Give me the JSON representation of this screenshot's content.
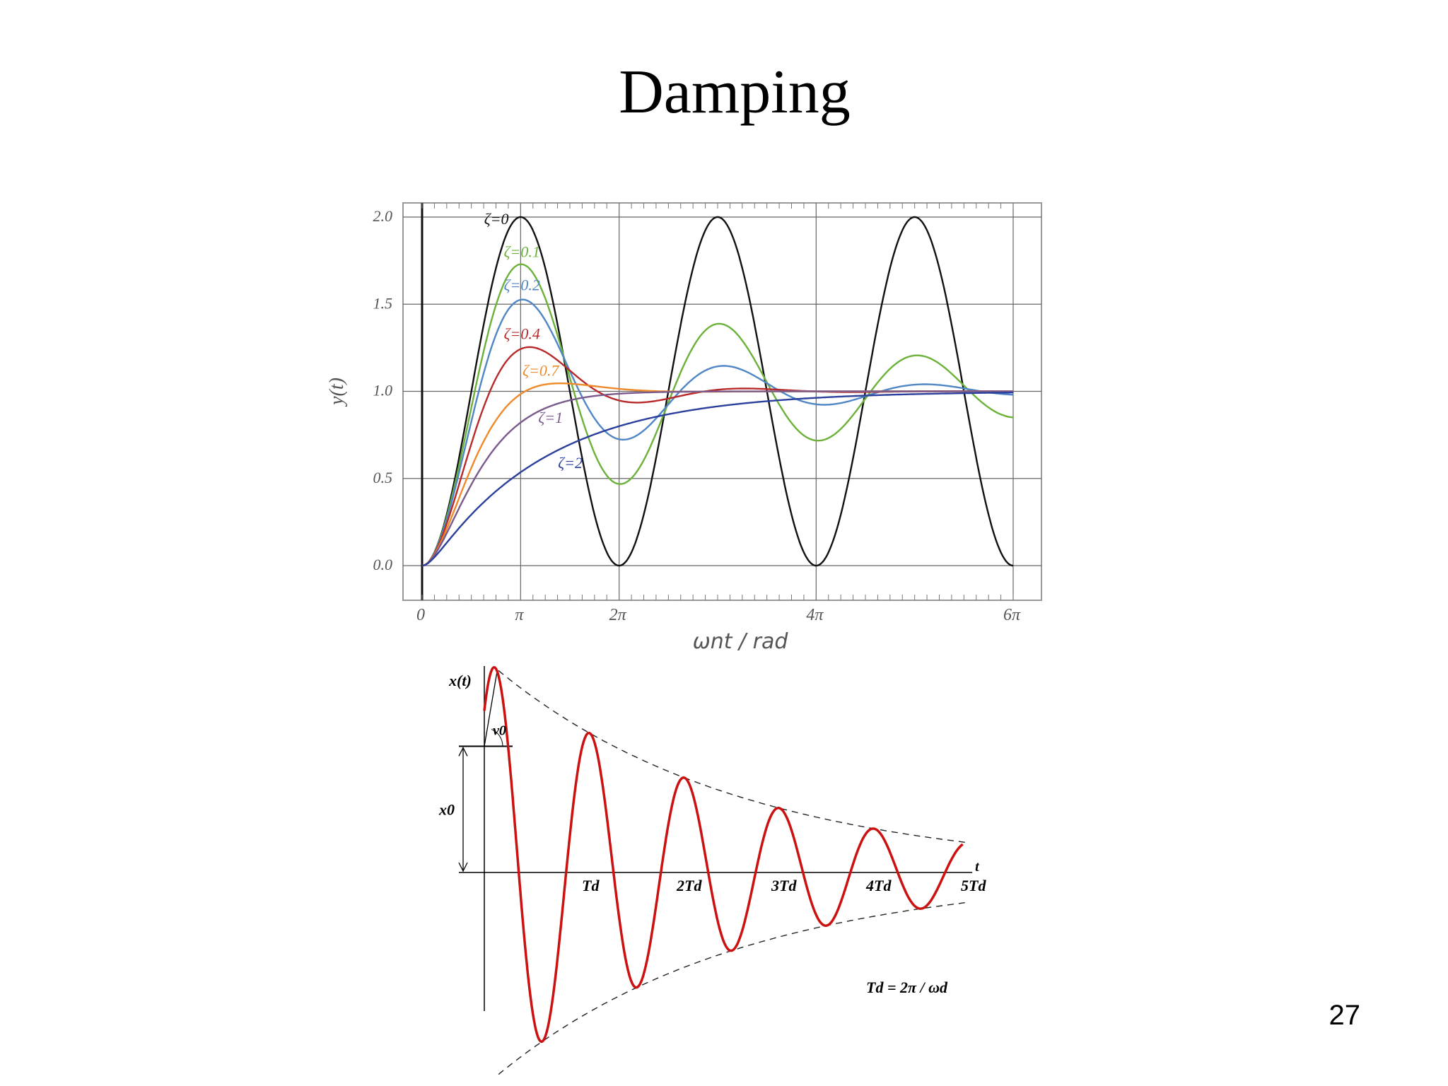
{
  "slide": {
    "title": "Damping",
    "page_number": "27"
  },
  "chart_data": [
    {
      "type": "line",
      "title": "",
      "xlabel": "ωnt / rad",
      "ylabel": "y(t)",
      "xlim": [
        0,
        6
      ],
      "ylim": [
        0,
        2
      ],
      "x_unit": "π rad",
      "xticks": [
        {
          "value": 0,
          "label": "0"
        },
        {
          "value": 1,
          "label": "π"
        },
        {
          "value": 2,
          "label": "2π"
        },
        {
          "value": 4,
          "label": "4π"
        },
        {
          "value": 6,
          "label": "6π"
        }
      ],
      "yticks": [
        {
          "value": 0,
          "label": "0.0"
        },
        {
          "value": 0.5,
          "label": "0.5"
        },
        {
          "value": 1.0,
          "label": "1.0"
        },
        {
          "value": 1.5,
          "label": "1.5"
        },
        {
          "value": 2.0,
          "label": "2.0"
        }
      ],
      "grid": true,
      "series": [
        {
          "name": "ζ=0",
          "zeta": 0,
          "color": "#111111",
          "label_at": [
            0.63,
            1.96
          ]
        },
        {
          "name": "ζ=0.1",
          "zeta": 0.1,
          "color": "#6bb13a",
          "label_at": [
            0.83,
            1.77
          ]
        },
        {
          "name": "ζ=0.2",
          "zeta": 0.2,
          "color": "#4f86c6",
          "label_at": [
            0.83,
            1.58
          ]
        },
        {
          "name": "ζ=0.4",
          "zeta": 0.4,
          "color": "#b82a2a",
          "label_at": [
            0.83,
            1.3
          ]
        },
        {
          "name": "ζ=0.7",
          "zeta": 0.7,
          "color": "#ee8a2a",
          "label_at": [
            1.02,
            1.09
          ]
        },
        {
          "name": "ζ=1",
          "zeta": 1,
          "color": "#7a5a8c",
          "label_at": [
            1.18,
            0.82
          ]
        },
        {
          "name": "ζ=2",
          "zeta": 2,
          "color": "#2b3f9c",
          "label_at": [
            1.38,
            0.56
          ]
        }
      ]
    },
    {
      "type": "line",
      "title": "",
      "ylabel": "x(t)",
      "xlabel": "t",
      "x_unit": "Td",
      "xlim": [
        -0.1,
        5.1
      ],
      "ylim": [
        -1.45,
        1.45
      ],
      "decay_per_period": 0.68,
      "xticks": [
        {
          "value": 1,
          "label": "Td"
        },
        {
          "value": 2,
          "label": "2Td"
        },
        {
          "value": 3,
          "label": "3Td"
        },
        {
          "value": 4,
          "label": "4Td"
        },
        {
          "value": 5,
          "label": "5Td"
        }
      ],
      "annotations": {
        "amplitude_label": "x0",
        "slope_label": "v0",
        "formula": "Td = 2π / ωd"
      },
      "series": [
        {
          "color": "#cc1111",
          "style": "solid"
        },
        {
          "color": "#000000",
          "style": "dashed"
        }
      ]
    }
  ]
}
